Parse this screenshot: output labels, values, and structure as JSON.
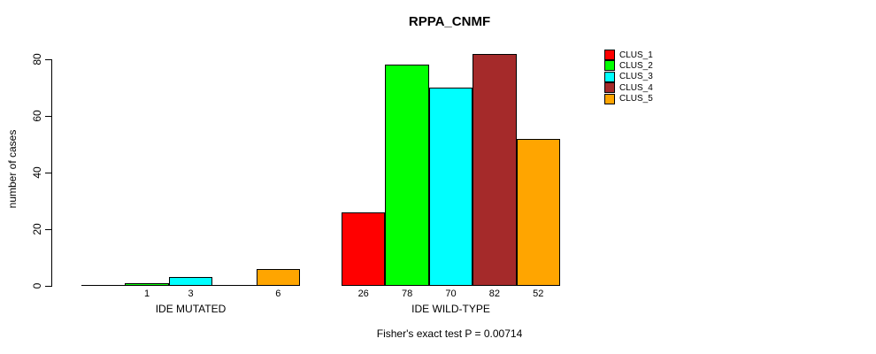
{
  "title": "RPPA_CNMF",
  "footer": "Fisher's exact test P = 0.00714",
  "y_axis": {
    "label": "number of cases"
  },
  "legend": [
    {
      "label": "CLUS_1",
      "color": "#FF0000"
    },
    {
      "label": "CLUS_2",
      "color": "#00FF00"
    },
    {
      "label": "CLUS_3",
      "color": "#00FFFF"
    },
    {
      "label": "CLUS_4",
      "color": "#A52A2A"
    },
    {
      "label": "CLUS_5",
      "color": "#FFA500"
    }
  ],
  "chart_data": {
    "type": "bar",
    "title": "RPPA_CNMF",
    "ylabel": "number of cases",
    "xlabel": "",
    "ylim": [
      0,
      80
    ],
    "yticks": [
      0,
      20,
      40,
      60,
      80
    ],
    "grid": false,
    "legend_position": "upper-right",
    "categories": [
      "IDE MUTATED",
      "IDE WILD-TYPE"
    ],
    "series": [
      {
        "name": "CLUS_1",
        "color": "#FF0000",
        "values": [
          0,
          26
        ]
      },
      {
        "name": "CLUS_2",
        "color": "#00FF00",
        "values": [
          1,
          78
        ]
      },
      {
        "name": "CLUS_3",
        "color": "#00FFFF",
        "values": [
          3,
          70
        ]
      },
      {
        "name": "CLUS_4",
        "color": "#A52A2A",
        "values": [
          0,
          82
        ]
      },
      {
        "name": "CLUS_5",
        "color": "#FFA500",
        "values": [
          6,
          52
        ]
      }
    ],
    "bar_labels": [
      [
        "",
        "1",
        "3",
        "",
        "6"
      ],
      [
        "26",
        "78",
        "70",
        "82",
        "52"
      ]
    ],
    "annotation": "Fisher's exact test P = 0.00714"
  }
}
